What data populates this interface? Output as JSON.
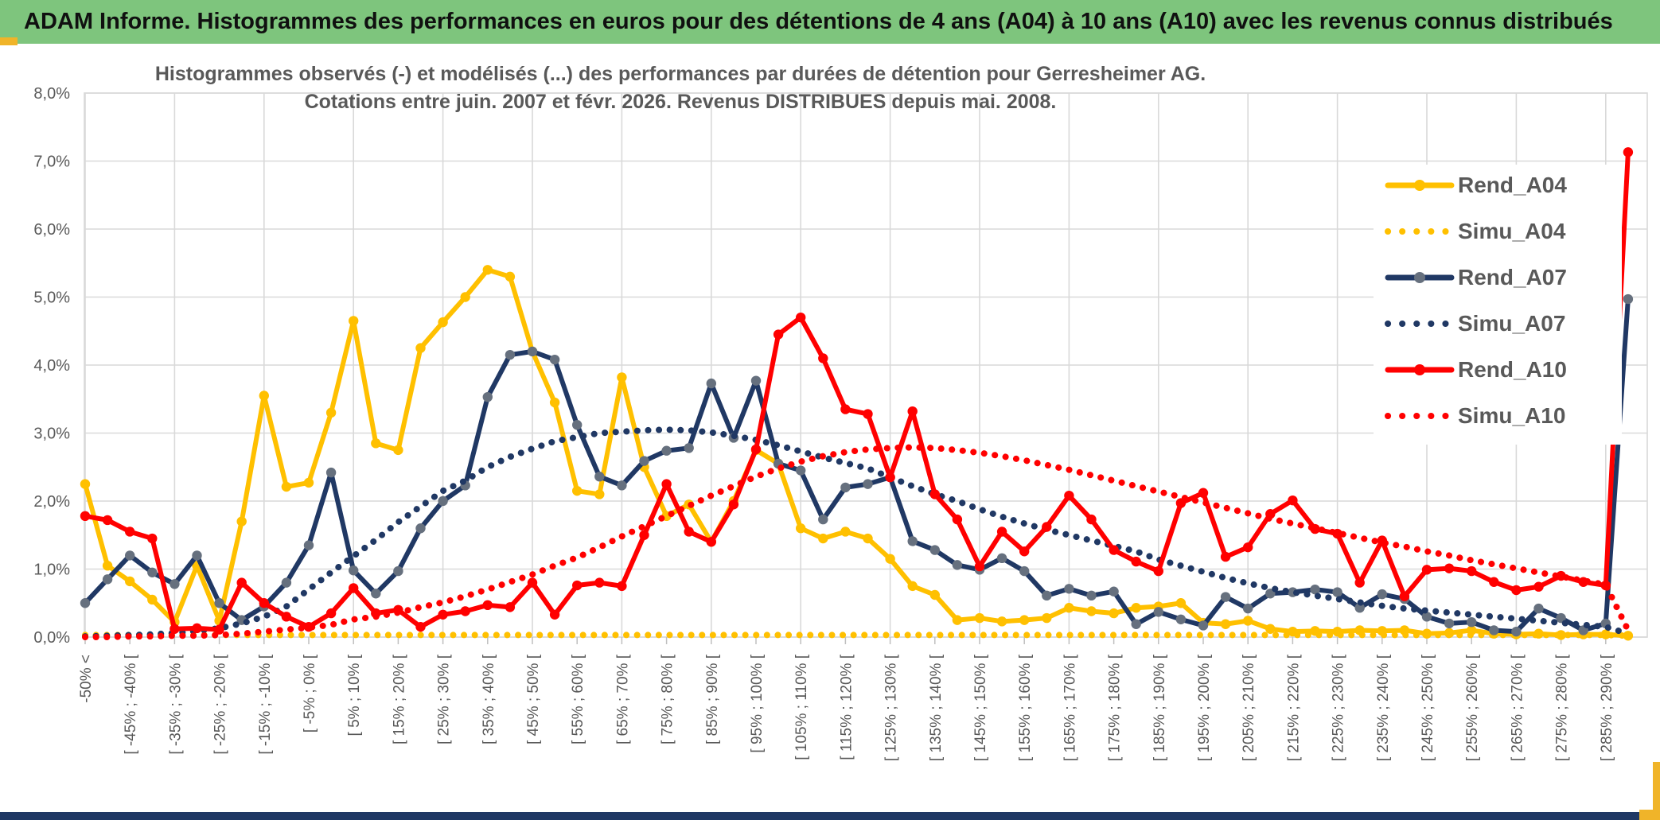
{
  "window": {
    "header_title": "ADAM Informe. Histogrammes des performances en euros pour des détentions de 4 ans (A04) à 10 ans (A10) avec les revenus connus distribués",
    "colors": {
      "header_bg": "#7EC57D",
      "header_text": "#101010",
      "accent_gold": "#F0B429",
      "bottom_bar": "#1F3864",
      "grid": "#D9D9D9",
      "axis_text": "#595959",
      "plot_bg": "#FFFFFF"
    }
  },
  "chart_data": {
    "type": "line",
    "title": "Histogrammes observés (-) et modélisés (...) des performances par durées de détention pour Gerresheimer AG.",
    "subtitle": "Cotations entre juin. 2007 et févr. 2026. Revenus DISTRIBUES depuis mai. 2008.",
    "ylabel": "",
    "xlabel": "",
    "y_unit": "%",
    "ylim": [
      0,
      8
    ],
    "grid": true,
    "y_ticks": [
      "8,0%",
      "7,0%",
      "6,0%",
      "5,0%",
      "4,0%",
      "3,0%",
      "2,0%",
      "1,0%",
      "0,0%"
    ],
    "bins": 70,
    "x_label_every": 2,
    "x_labels": [
      "-50% <",
      "[ -45% ; -40% [",
      "[ -35% ; -30% [",
      "[ -25% ; -20% [",
      "[ -15% ; -10% [",
      "[ -5% ; 0% [",
      "[ 5% ; 10% [",
      "[ 15% ; 20% [",
      "[ 25% ; 30% [",
      "[ 35% ; 40% [",
      "[ 45% ; 50% [",
      "[ 55% ; 60% [",
      "[ 65% ; 70% [",
      "[ 75% ; 80% [",
      "[ 85% ; 90% [",
      "[ 95% ; 100% [",
      "[ 105% ; 110% [",
      "[ 115% ; 120% [",
      "[ 125% ; 130% [",
      "[ 135% ; 140% [",
      "[ 145% ; 150% [",
      "[ 155% ; 160% [",
      "[ 165% ; 170% [",
      "[ 175% ; 180% [",
      "[ 185% ; 190% [",
      "[ 195% ; 200% [",
      "[ 205% ; 210% [",
      "[ 215% ; 220% [",
      "[ 225% ; 230% [",
      "[ 235% ; 240% [",
      "[ 245% ; 250% [",
      "[ 255% ; 260% [",
      "[ 265% ; 270% [",
      "[ 275% ; 280% [",
      "[ 285% ; 290% ["
    ],
    "legend": {
      "position": "upper-right",
      "entries": [
        "Rend_A04",
        "Simu_A04",
        "Rend_A07",
        "Simu_A07",
        "Rend_A10",
        "Simu_A10"
      ]
    },
    "series": [
      {
        "name": "Rend_A04",
        "style": "solid",
        "color": "#FFC000",
        "marker": "#FFC000",
        "values": [
          2.25,
          1.05,
          0.82,
          0.55,
          0.22,
          1.05,
          0.24,
          1.7,
          3.55,
          2.21,
          2.27,
          3.3,
          4.65,
          2.85,
          2.75,
          4.25,
          4.63,
          5.0,
          5.4,
          5.3,
          4.2,
          3.45,
          2.15,
          2.1,
          3.82,
          2.5,
          1.78,
          1.95,
          1.4,
          2.0,
          2.75,
          2.55,
          1.6,
          1.45,
          1.55,
          1.45,
          1.15,
          0.75,
          0.62,
          0.25,
          0.28,
          0.23,
          0.25,
          0.28,
          0.43,
          0.38,
          0.35,
          0.43,
          0.45,
          0.5,
          0.21,
          0.19,
          0.24,
          0.12,
          0.08,
          0.09,
          0.08,
          0.1,
          0.09,
          0.1,
          0.05,
          0.06,
          0.1,
          0.05,
          0.04,
          0.05,
          0.03,
          0.04,
          0.04,
          0.02
        ]
      },
      {
        "name": "Simu_A04",
        "style": "dotted",
        "color": "#FFC000",
        "values": [
          0.03,
          0.03,
          0.03,
          0.03,
          0.03,
          0.03,
          0.03,
          0.03,
          0.03,
          0.03,
          0.03,
          0.03,
          0.03,
          0.03,
          0.03,
          0.03,
          0.03,
          0.03,
          0.03,
          0.03,
          0.03,
          0.03,
          0.03,
          0.03,
          0.03,
          0.03,
          0.03,
          0.03,
          0.03,
          0.03,
          0.03,
          0.03,
          0.03,
          0.03,
          0.03,
          0.03,
          0.03,
          0.03,
          0.03,
          0.03,
          0.03,
          0.03,
          0.03,
          0.03,
          0.03,
          0.03,
          0.03,
          0.03,
          0.03,
          0.03,
          0.03,
          0.03,
          0.03,
          0.03,
          0.03,
          0.03,
          0.03,
          0.03,
          0.03,
          0.03,
          0.03,
          0.03,
          0.03,
          0.03,
          0.03,
          0.03,
          0.03,
          0.03,
          0.03,
          0.02
        ]
      },
      {
        "name": "Rend_A07",
        "style": "solid",
        "color": "#203864",
        "marker": "#66707E",
        "values": [
          0.5,
          0.85,
          1.2,
          0.95,
          0.78,
          1.2,
          0.5,
          0.25,
          0.45,
          0.8,
          1.35,
          2.42,
          0.98,
          0.64,
          0.97,
          1.6,
          2.0,
          2.23,
          3.53,
          4.15,
          4.2,
          4.08,
          3.12,
          2.36,
          2.23,
          2.59,
          2.74,
          2.78,
          3.73,
          2.93,
          3.77,
          2.55,
          2.45,
          1.73,
          2.2,
          2.25,
          2.35,
          1.41,
          1.28,
          1.06,
          0.99,
          1.16,
          0.97,
          0.61,
          0.71,
          0.61,
          0.67,
          0.19,
          0.37,
          0.26,
          0.17,
          0.59,
          0.42,
          0.64,
          0.66,
          0.7,
          0.66,
          0.43,
          0.63,
          0.56,
          0.3,
          0.2,
          0.22,
          0.1,
          0.08,
          0.42,
          0.28,
          0.1,
          0.2,
          4.97
        ]
      },
      {
        "name": "Simu_A07",
        "style": "dotted",
        "color": "#203864",
        "values": [
          0.01,
          0.02,
          0.03,
          0.04,
          0.06,
          0.09,
          0.13,
          0.2,
          0.3,
          0.45,
          0.7,
          0.95,
          1.19,
          1.43,
          1.69,
          1.92,
          2.15,
          2.3,
          2.5,
          2.65,
          2.77,
          2.88,
          2.94,
          3.0,
          3.02,
          3.04,
          3.05,
          3.04,
          3.01,
          2.96,
          2.9,
          2.82,
          2.73,
          2.64,
          2.56,
          2.48,
          2.35,
          2.22,
          2.1,
          2.0,
          1.88,
          1.77,
          1.67,
          1.58,
          1.5,
          1.42,
          1.34,
          1.26,
          1.14,
          1.05,
          0.96,
          0.87,
          0.79,
          0.72,
          0.66,
          0.61,
          0.56,
          0.51,
          0.46,
          0.42,
          0.39,
          0.36,
          0.33,
          0.3,
          0.27,
          0.24,
          0.21,
          0.18,
          0.15,
          0.05
        ]
      },
      {
        "name": "Rend_A10",
        "style": "solid",
        "color": "#FF0000",
        "marker": "#FF0000",
        "values": [
          1.78,
          1.72,
          1.55,
          1.45,
          0.12,
          0.13,
          0.11,
          0.8,
          0.5,
          0.3,
          0.15,
          0.35,
          0.72,
          0.35,
          0.4,
          0.15,
          0.33,
          0.38,
          0.47,
          0.44,
          0.8,
          0.33,
          0.76,
          0.8,
          0.75,
          1.5,
          2.25,
          1.55,
          1.4,
          1.95,
          2.76,
          4.45,
          4.7,
          4.1,
          3.35,
          3.28,
          2.35,
          3.32,
          2.1,
          1.73,
          1.04,
          1.55,
          1.26,
          1.62,
          2.08,
          1.73,
          1.28,
          1.11,
          0.97,
          1.97,
          2.12,
          1.18,
          1.32,
          1.81,
          2.01,
          1.59,
          1.52,
          0.8,
          1.42,
          0.6,
          0.99,
          1.01,
          0.97,
          0.81,
          0.69,
          0.74,
          0.9,
          0.81,
          0.76,
          7.13
        ]
      },
      {
        "name": "Simu_A10",
        "style": "dotted",
        "color": "#FF0000",
        "values": [
          0.0,
          0.0,
          0.01,
          0.01,
          0.02,
          0.02,
          0.03,
          0.05,
          0.08,
          0.11,
          0.14,
          0.18,
          0.26,
          0.3,
          0.36,
          0.44,
          0.51,
          0.6,
          0.7,
          0.81,
          0.92,
          1.05,
          1.17,
          1.32,
          1.48,
          1.63,
          1.78,
          1.93,
          2.08,
          2.22,
          2.36,
          2.48,
          2.58,
          2.66,
          2.72,
          2.76,
          2.78,
          2.79,
          2.78,
          2.75,
          2.71,
          2.66,
          2.6,
          2.53,
          2.46,
          2.38,
          2.3,
          2.22,
          2.14,
          2.06,
          1.98,
          1.9,
          1.82,
          1.74,
          1.67,
          1.6,
          1.53,
          1.46,
          1.39,
          1.33,
          1.26,
          1.2,
          1.13,
          1.07,
          1.01,
          0.95,
          0.89,
          0.83,
          0.77,
          0.1
        ]
      }
    ]
  }
}
